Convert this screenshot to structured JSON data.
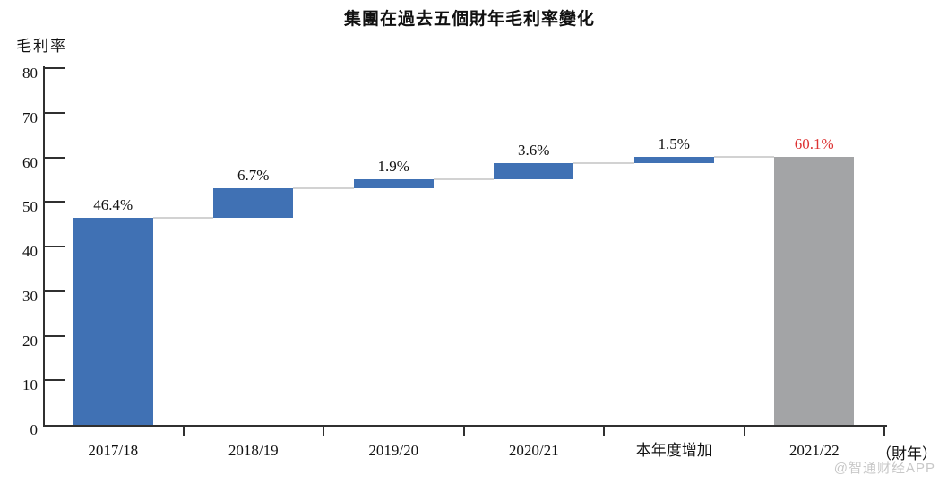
{
  "page": {
    "watermark": "@智通财经APP"
  },
  "chart_data": {
    "type": "bar",
    "subtype": "waterfall",
    "title": "集團在過去五個財年毛利率變化",
    "ylabel": "毛利率",
    "x_unit_label": "（財年）",
    "ylim": [
      0,
      80
    ],
    "y_ticks": [
      0,
      10,
      20,
      30,
      40,
      50,
      60,
      70,
      80
    ],
    "grid": false,
    "legend_position": "none",
    "categories": [
      "2017/18",
      "2018/19",
      "2019/20",
      "2020/21",
      "本年度增加",
      "2021/22"
    ],
    "bars": [
      {
        "category": "2017/18",
        "start": 0,
        "end": 46.4,
        "label": "46.4%",
        "color_key": "blue",
        "label_color_key": "black"
      },
      {
        "category": "2018/19",
        "start": 46.4,
        "end": 53.1,
        "label": "6.7%",
        "color_key": "blue",
        "label_color_key": "black"
      },
      {
        "category": "2019/20",
        "start": 53.1,
        "end": 55.0,
        "label": "1.9%",
        "color_key": "blue",
        "label_color_key": "black"
      },
      {
        "category": "2020/21",
        "start": 55.0,
        "end": 58.6,
        "label": "3.6%",
        "color_key": "blue",
        "label_color_key": "black"
      },
      {
        "category": "本年度增加",
        "start": 58.6,
        "end": 60.1,
        "label": "1.5%",
        "color_key": "blue",
        "label_color_key": "black"
      },
      {
        "category": "2021/22",
        "start": 0,
        "end": 60.1,
        "label": "60.1%",
        "color_key": "gray",
        "label_color_key": "red"
      }
    ],
    "colors": {
      "blue": "#4071b4",
      "gray": "#a3a4a6",
      "black": "#111111",
      "red": "#dd3333",
      "axis": "#303030",
      "connector": "#d2d2d2",
      "watermark": "#c8c8c8"
    }
  }
}
